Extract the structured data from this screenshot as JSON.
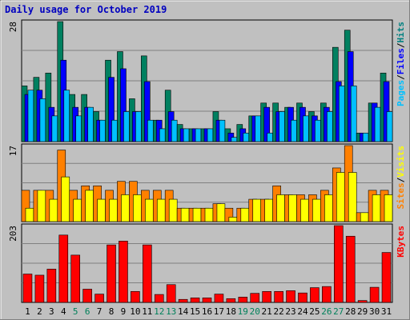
{
  "chart_data": {
    "type": "bar",
    "title": "Daily usage for October 2019",
    "categories": [
      "1",
      "2",
      "3",
      "4",
      "5",
      "6",
      "7",
      "8",
      "9",
      "10",
      "11",
      "12",
      "13",
      "14",
      "15",
      "16",
      "17",
      "18",
      "19",
      "20",
      "21",
      "22",
      "23",
      "24",
      "25",
      "26",
      "27",
      "28",
      "29",
      "30",
      "31"
    ],
    "weekend_days": [
      "5",
      "6",
      "12",
      "13",
      "19",
      "20",
      "26",
      "27"
    ],
    "panels": [
      {
        "name": "hits_files_pages",
        "ymax_label": "28",
        "ymax": 28,
        "legend": [
          "Pages",
          "/",
          "Files",
          "/",
          "Hits"
        ],
        "legend_colors": [
          "#00c0ff",
          "#000000",
          "#0000ff",
          "#000000",
          "#008080"
        ],
        "series": [
          {
            "name": "Hits",
            "color": "#008060",
            "values": [
              13,
              15,
              16,
              28,
              11,
              11,
              7,
              19,
              21,
              10,
              20,
              5,
              12,
              4,
              3,
              3,
              7,
              3,
              4,
              6,
              9,
              9,
              8,
              9,
              7,
              9,
              22,
              26,
              2,
              9,
              16
            ]
          },
          {
            "name": "Files",
            "color": "#0000ff",
            "values": [
              11,
              12,
              8,
              19,
              8,
              8,
              5,
              15,
              17,
              7,
              14,
              5,
              7,
              3,
              3,
              3,
              5,
              2,
              3,
              6,
              8,
              7,
              8,
              8,
              6,
              8,
              14,
              21,
              2,
              9,
              14
            ]
          },
          {
            "name": "Pages",
            "color": "#00c0ff",
            "values": [
              12,
              10,
              6,
              12,
              6,
              8,
              5,
              5,
              7,
              7,
              5,
              3,
              5,
              3,
              3,
              3,
              5,
              1,
              2,
              6,
              2,
              7,
              5,
              6,
              5,
              7,
              13,
              13,
              2,
              8,
              7
            ]
          }
        ]
      },
      {
        "name": "visits_sites",
        "ymax_label": "17",
        "ymax": 17,
        "legend": [
          "Sites",
          "/",
          "Visits"
        ],
        "legend_colors": [
          "#ff8000",
          "#000000",
          "#ffff00"
        ],
        "series": [
          {
            "name": "Visits",
            "color": "#ff8000",
            "values": [
              7,
              7,
              7,
              16,
              7,
              8,
              8,
              7,
              9,
              9,
              7,
              7,
              7,
              3,
              3,
              3,
              4,
              3,
              3,
              5,
              5,
              8,
              6,
              6,
              6,
              7,
              12,
              17,
              2,
              7,
              7
            ]
          },
          {
            "name": "Sites",
            "color": "#ffff00",
            "values": [
              3,
              7,
              5,
              10,
              5,
              7,
              5,
              5,
              6,
              6,
              5,
              5,
              5,
              3,
              3,
              3,
              4,
              1,
              3,
              5,
              5,
              6,
              6,
              5,
              5,
              6,
              11,
              11,
              2,
              6,
              6
            ]
          }
        ]
      },
      {
        "name": "kbytes",
        "ymax_label": "203",
        "ymax": 203,
        "legend": [
          "KBytes"
        ],
        "legend_colors": [
          "#ff0000"
        ],
        "series": [
          {
            "name": "KBytes",
            "color": "#ff0000",
            "values": [
              75,
              72,
              88,
              178,
              125,
              35,
              22,
              152,
              162,
              29,
              152,
              21,
              47,
              8,
              12,
              12,
              22,
              10,
              14,
              24,
              29,
              29,
              31,
              25,
              39,
              42,
              203,
              175,
              5,
              40,
              132
            ]
          }
        ]
      }
    ]
  }
}
